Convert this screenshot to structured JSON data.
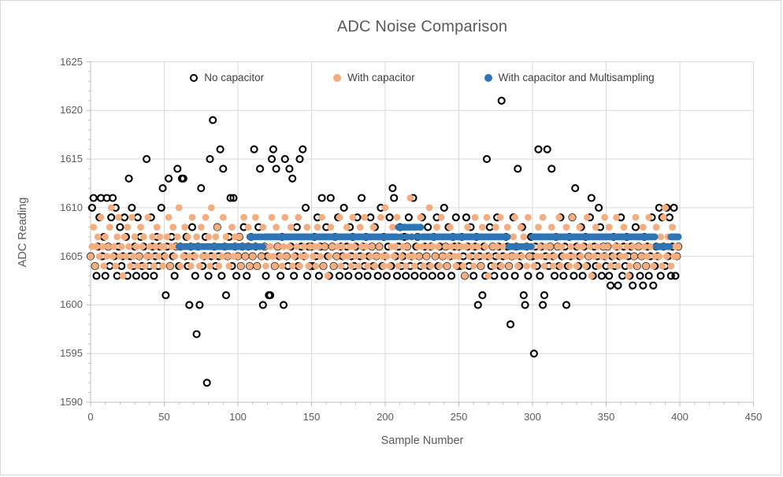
{
  "chart_data": {
    "type": "scatter",
    "title": "ADC Noise Comparison",
    "xlabel": "Sample Number",
    "ylabel": "ADC Reading",
    "xlim": [
      0,
      450
    ],
    "ylim": [
      1590,
      1625
    ],
    "x_ticks": [
      0,
      50,
      100,
      150,
      200,
      250,
      300,
      350,
      400,
      450
    ],
    "y_ticks": [
      1590,
      1595,
      1600,
      1605,
      1610,
      1615,
      1620,
      1625
    ],
    "x_minor_unit": 10,
    "y_minor_unit": 1,
    "grid": "on",
    "legend_position": "top-inside",
    "colors": {
      "gridline": "#d9d9d9",
      "axis_line": "#bfbfbf",
      "tick_text": "#595959",
      "title_text": "#595959"
    },
    "series": [
      {
        "name": "No capacitor",
        "marker": "open-circle",
        "color": "#000000",
        "x_start": 0,
        "x_step": 1,
        "values": [
          1605,
          1610,
          1611,
          1604,
          1603,
          1606,
          1609,
          1611,
          1605,
          1607,
          1603,
          1611,
          1606,
          1604,
          1609,
          1611,
          1605,
          1610,
          1603,
          1606,
          1608,
          1604,
          1605,
          1609,
          1607,
          1603,
          1613,
          1605,
          1610,
          1604,
          1606,
          1603,
          1609,
          1605,
          1607,
          1604,
          1606,
          1603,
          1615,
          1605,
          1604,
          1609,
          1606,
          1603,
          1605,
          1607,
          1604,
          1606,
          1610,
          1612,
          1605,
          1601,
          1606,
          1613,
          1604,
          1607,
          1605,
          1603,
          1606,
          1614,
          1604,
          1606,
          1613,
          1613,
          1605,
          1607,
          1604,
          1600,
          1606,
          1608,
          1605,
          1603,
          1597,
          1606,
          1600,
          1612,
          1604,
          1605,
          1607,
          1592,
          1603,
          1615,
          1605,
          1619,
          1606,
          1604,
          1608,
          1605,
          1616,
          1603,
          1614,
          1606,
          1601,
          1605,
          1607,
          1611,
          1604,
          1611,
          1606,
          1603,
          1605,
          1607,
          1604,
          1606,
          1608,
          1605,
          1603,
          1606,
          1604,
          1607,
          1605,
          1616,
          1606,
          1604,
          1608,
          1614,
          1605,
          1600,
          1606,
          1603,
          1605,
          1601,
          1601,
          1615,
          1616,
          1604,
          1614,
          1606,
          1605,
          1603,
          1607,
          1600,
          1615,
          1605,
          1604,
          1614,
          1606,
          1613,
          1603,
          1605,
          1608,
          1604,
          1615,
          1606,
          1616,
          1605,
          1610,
          1603,
          1606,
          1604,
          1606,
          1604,
          1607,
          1605,
          1609,
          1603,
          1606,
          1611,
          1604,
          1606,
          1608,
          1605,
          1603,
          1611,
          1606,
          1604,
          1607,
          1605,
          1609,
          1603,
          1606,
          1605,
          1610,
          1604,
          1606,
          1603,
          1608,
          1605,
          1607,
          1604,
          1606,
          1609,
          1603,
          1605,
          1611,
          1606,
          1604,
          1607,
          1603,
          1605,
          1609,
          1606,
          1604,
          1608,
          1605,
          1603,
          1606,
          1610,
          1604,
          1607,
          1605,
          1603,
          1606,
          1609,
          1604,
          1612,
          1611,
          1605,
          1603,
          1606,
          1608,
          1604,
          1605,
          1607,
          1603,
          1606,
          1609,
          1604,
          1605,
          1611,
          1603,
          1606,
          1607,
          1605,
          1604,
          1609,
          1603,
          1606,
          1605,
          1608,
          1604,
          1606,
          1603,
          1607,
          1605,
          1609,
          1604,
          1606,
          1603,
          1605,
          1610,
          1606,
          1604,
          1608,
          1605,
          1603,
          1607,
          1606,
          1609,
          1604,
          1606,
          1604,
          1607,
          1605,
          1603,
          1609,
          1606,
          1604,
          1608,
          1605,
          1603,
          1606,
          1607,
          1600,
          1605,
          1604,
          1601,
          1606,
          1603,
          1615,
          1605,
          1608,
          1604,
          1606,
          1603,
          1605,
          1609,
          1606,
          1604,
          1621,
          1605,
          1603,
          1607,
          1606,
          1604,
          1598,
          1605,
          1609,
          1603,
          1606,
          1614,
          1604,
          1605,
          1608,
          1601,
          1600,
          1606,
          1603,
          1605,
          1607,
          1605,
          1595,
          1606,
          1604,
          1616,
          1603,
          1606,
          1600,
          1601,
          1605,
          1616,
          1604,
          1606,
          1614,
          1605,
          1603,
          1607,
          1606,
          1604,
          1609,
          1605,
          1603,
          1606,
          1600,
          1604,
          1607,
          1605,
          1609,
          1603,
          1612,
          1606,
          1604,
          1605,
          1608,
          1603,
          1606,
          1607,
          1604,
          1605,
          1609,
          1611,
          1603,
          1606,
          1604,
          1605,
          1610,
          1608,
          1603,
          1606,
          1605,
          1604,
          1606,
          1603,
          1602,
          1605,
          1607,
          1604,
          1606,
          1602,
          1605,
          1609,
          1603,
          1606,
          1604,
          1607,
          1605,
          1603,
          1606,
          1602,
          1605,
          1608,
          1604,
          1606,
          1603,
          1605,
          1602,
          1607,
          1604,
          1606,
          1603,
          1605,
          1609,
          1602,
          1604,
          1606,
          1605,
          1610,
          1603,
          1609,
          1606,
          1604,
          1610,
          1605,
          1609,
          1603,
          1606,
          1610,
          1603,
          1605,
          1606
        ]
      },
      {
        "name": "With capacitor",
        "marker": "filled-circle",
        "color": "#f2ae81",
        "x_start": 0,
        "x_step": 1,
        "values": [
          1605,
          1606,
          1608,
          1604,
          1606,
          1607,
          1605,
          1609,
          1606,
          1604,
          1607,
          1605,
          1606,
          1608,
          1610,
          1605,
          1606,
          1604,
          1607,
          1609,
          1605,
          1606,
          1603,
          1607,
          1605,
          1608,
          1606,
          1604,
          1609,
          1605,
          1607,
          1606,
          1604,
          1605,
          1608,
          1606,
          1607,
          1604,
          1605,
          1609,
          1606,
          1605,
          1607,
          1604,
          1606,
          1608,
          1605,
          1607,
          1606,
          1604,
          1606,
          1605,
          1607,
          1609,
          1604,
          1606,
          1608,
          1605,
          1606,
          1607,
          1610,
          1604,
          1606,
          1605,
          1608,
          1606,
          1607,
          1605,
          1604,
          1609,
          1606,
          1605,
          1607,
          1606,
          1604,
          1608,
          1605,
          1606,
          1609,
          1605,
          1607,
          1604,
          1610,
          1606,
          1605,
          1607,
          1608,
          1604,
          1606,
          1605,
          1609,
          1606,
          1607,
          1605,
          1604,
          1606,
          1608,
          1605,
          1607,
          1606,
          1605,
          1607,
          1604,
          1606,
          1609,
          1605,
          1606,
          1608,
          1604,
          1607,
          1605,
          1606,
          1609,
          1604,
          1606,
          1607,
          1605,
          1608,
          1606,
          1604,
          1607,
          1605,
          1606,
          1609,
          1605,
          1604,
          1608,
          1606,
          1607,
          1605,
          1604,
          1606,
          1609,
          1605,
          1607,
          1606,
          1608,
          1604,
          1605,
          1607,
          1606,
          1609,
          1604,
          1605,
          1607,
          1606,
          1605,
          1608,
          1604,
          1606,
          1607,
          1605,
          1606,
          1604,
          1608,
          1606,
          1605,
          1609,
          1604,
          1606,
          1607,
          1603,
          1605,
          1608,
          1606,
          1604,
          1607,
          1605,
          1606,
          1609,
          1604,
          1606,
          1605,
          1607,
          1608,
          1605,
          1606,
          1604,
          1609,
          1606,
          1605,
          1607,
          1604,
          1608,
          1606,
          1605,
          1609,
          1606,
          1604,
          1607,
          1605,
          1606,
          1608,
          1604,
          1605,
          1607,
          1606,
          1609,
          1605,
          1604,
          1610,
          1605,
          1607,
          1604,
          1606,
          1608,
          1605,
          1606,
          1609,
          1604,
          1607,
          1605,
          1606,
          1608,
          1604,
          1606,
          1605,
          1611,
          1607,
          1605,
          1604,
          1608,
          1606,
          1605,
          1609,
          1606,
          1604,
          1607,
          1605,
          1606,
          1610,
          1604,
          1606,
          1607,
          1605,
          1608,
          1606,
          1604,
          1609,
          1605,
          1607,
          1606,
          1604,
          1605,
          1608,
          1606,
          1607,
          1605,
          1604,
          1606,
          1605,
          1607,
          1606,
          1604,
          1603,
          1606,
          1608,
          1605,
          1607,
          1606,
          1604,
          1609,
          1605,
          1606,
          1607,
          1604,
          1608,
          1605,
          1606,
          1609,
          1603,
          1605,
          1607,
          1606,
          1604,
          1608,
          1606,
          1605,
          1609,
          1604,
          1606,
          1607,
          1605,
          1608,
          1604,
          1606,
          1605,
          1607,
          1609,
          1605,
          1604,
          1606,
          1608,
          1605,
          1607,
          1606,
          1604,
          1609,
          1605,
          1606,
          1606,
          1604,
          1607,
          1605,
          1608,
          1606,
          1605,
          1609,
          1604,
          1606,
          1607,
          1605,
          1606,
          1608,
          1604,
          1605,
          1607,
          1606,
          1609,
          1604,
          1606,
          1605,
          1607,
          1608,
          1605,
          1604,
          1606,
          1609,
          1605,
          1607,
          1604,
          1606,
          1608,
          1605,
          1606,
          1607,
          1604,
          1609,
          1605,
          1606,
          1603,
          1607,
          1605,
          1608,
          1606,
          1604,
          1607,
          1605,
          1606,
          1609,
          1605,
          1606,
          1608,
          1604,
          1607,
          1605,
          1606,
          1609,
          1604,
          1606,
          1605,
          1607,
          1608,
          1605,
          1606,
          1603,
          1604,
          1607,
          1606,
          1605,
          1609,
          1604,
          1606,
          1607,
          1605,
          1608,
          1606,
          1604,
          1605,
          1609,
          1606,
          1607,
          1604,
          1605,
          1608,
          1606,
          1605,
          1607,
          1604,
          1609,
          1610,
          1605,
          1607,
          1606,
          1604,
          1608,
          1605,
          1606,
          1605,
          1606
        ]
      },
      {
        "name": "With capacitor and Multisampling",
        "marker": "filled-circle",
        "color": "#2e75b6",
        "x_start": 60,
        "x_step": 1,
        "values": [
          1606,
          1606,
          1606,
          1606,
          1606,
          1606,
          1606,
          1606,
          1606,
          1606,
          1606,
          1606,
          1606,
          1606,
          1606,
          1606,
          1606,
          1606,
          1606,
          1606,
          1606,
          1606,
          1606,
          1606,
          1606,
          1606,
          1606,
          1606,
          1606,
          1606,
          1606,
          1606,
          1606,
          1606,
          1606,
          1606,
          1606,
          1606,
          1606,
          1606,
          1606,
          1606,
          1606,
          1606,
          1606,
          1606,
          1606,
          1606,
          1607,
          1606,
          1607,
          1606,
          1607,
          1606,
          1607,
          1606,
          1607,
          1606,
          1607,
          1607,
          1607,
          1607,
          1607,
          1607,
          1607,
          1607,
          1607,
          1607,
          1607,
          1607,
          1607,
          1607,
          1607,
          1607,
          1607,
          1607,
          1607,
          1607,
          1607,
          1607,
          1607,
          1607,
          1607,
          1607,
          1607,
          1607,
          1607,
          1607,
          1607,
          1607,
          1607,
          1607,
          1607,
          1607,
          1607,
          1607,
          1607,
          1607,
          1607,
          1607,
          1607,
          1607,
          1607,
          1607,
          1607,
          1607,
          1607,
          1607,
          1607,
          1607,
          1607,
          1607,
          1607,
          1607,
          1607,
          1607,
          1607,
          1607,
          1607,
          1607,
          1607,
          1607,
          1607,
          1607,
          1607,
          1607,
          1607,
          1607,
          1607,
          1607,
          1607,
          1607,
          1607,
          1607,
          1607,
          1607,
          1607,
          1607,
          1607,
          1607,
          1607,
          1607,
          1607,
          1607,
          1607,
          1607,
          1607,
          1607,
          1607,
          1608,
          1608,
          1607,
          1608,
          1608,
          1608,
          1607,
          1608,
          1608,
          1607,
          1608,
          1608,
          1608,
          1607,
          1608,
          1608,
          1607,
          1607,
          1607,
          1607,
          1607,
          1607,
          1607,
          1607,
          1607,
          1607,
          1607,
          1607,
          1607,
          1607,
          1607,
          1607,
          1607,
          1607,
          1607,
          1607,
          1607,
          1607,
          1607,
          1607,
          1607,
          1607,
          1607,
          1607,
          1607,
          1607,
          1607,
          1607,
          1607,
          1607,
          1607,
          1607,
          1607,
          1607,
          1607,
          1607,
          1607,
          1607,
          1607,
          1607,
          1607,
          1607,
          1607,
          1607,
          1607,
          1607,
          1607,
          1607,
          1607,
          1607,
          1607,
          1607,
          1607,
          1607,
          1607,
          1606,
          1606,
          1606,
          1606,
          1606,
          1606,
          1606,
          1606,
          1606,
          1606,
          1606,
          1606,
          1606,
          1606,
          1606,
          1606,
          1607,
          1607,
          1607,
          1607,
          1607,
          1607,
          1607,
          1607,
          1607,
          1607,
          1607,
          1607,
          1607,
          1607,
          1607,
          1607,
          1607,
          1607,
          1607,
          1607,
          1607,
          1607,
          1607,
          1607,
          1607,
          1607,
          1607,
          1607,
          1607,
          1607,
          1607,
          1607,
          1607,
          1607,
          1607,
          1607,
          1607,
          1607,
          1607,
          1607,
          1607,
          1607,
          1607,
          1607,
          1607,
          1607,
          1607,
          1607,
          1607,
          1607,
          1607,
          1607,
          1607,
          1607,
          1607,
          1607,
          1607,
          1607,
          1607,
          1607,
          1607,
          1607,
          1607,
          1607,
          1607,
          1607,
          1607,
          1607,
          1607,
          1607,
          1607,
          1607,
          1607,
          1607,
          1607,
          1607,
          1607,
          1607,
          1607,
          1607,
          1607,
          1607,
          1607,
          1607,
          1606,
          1606,
          1606,
          1606,
          1606,
          1606,
          1606,
          1606,
          1606,
          1606,
          1607,
          1607,
          1607,
          1607,
          1607,
          1607
        ]
      }
    ]
  }
}
